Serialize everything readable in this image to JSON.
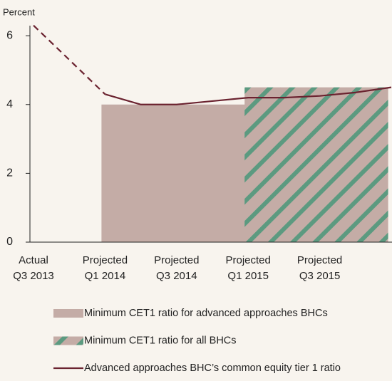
{
  "chart_data": {
    "type": "bar_line",
    "y_axis_label": "Percent",
    "categories": [
      [
        "Actual",
        "Q3 2013"
      ],
      null,
      [
        "Projected",
        "Q1 2014"
      ],
      null,
      [
        "Projected",
        "Q3 2014"
      ],
      null,
      [
        "Projected",
        "Q1 2015"
      ],
      null,
      [
        "Projected",
        "Q3 2015"
      ],
      null,
      null
    ],
    "ylim": [
      0,
      6.5
    ],
    "yticks": [
      0,
      2,
      4,
      6
    ],
    "series": [
      {
        "name": "Minimum CET1 ratio for advanced approaches BHCs",
        "kind": "bar",
        "color": "#c4aca6",
        "values": [
          null,
          null,
          4.0,
          4.0,
          4.0,
          4.0,
          null,
          null,
          null,
          null,
          null
        ]
      },
      {
        "name": "Minimum CET1 ratio for all BHCs",
        "kind": "bar",
        "color": "#c4aca6",
        "hatch_color": "#5c9a80",
        "values": [
          null,
          null,
          null,
          null,
          null,
          null,
          4.5,
          4.5,
          4.5,
          4.5,
          null
        ]
      },
      {
        "name": "Advanced approaches BHC’s common equity tier 1 ratio",
        "kind": "line",
        "color": "#6b2330",
        "dashed_through": 2,
        "values": [
          6.3,
          5.3,
          4.3,
          4.0,
          4.0,
          4.1,
          4.2,
          4.2,
          4.25,
          4.35,
          4.5
        ]
      }
    ]
  }
}
